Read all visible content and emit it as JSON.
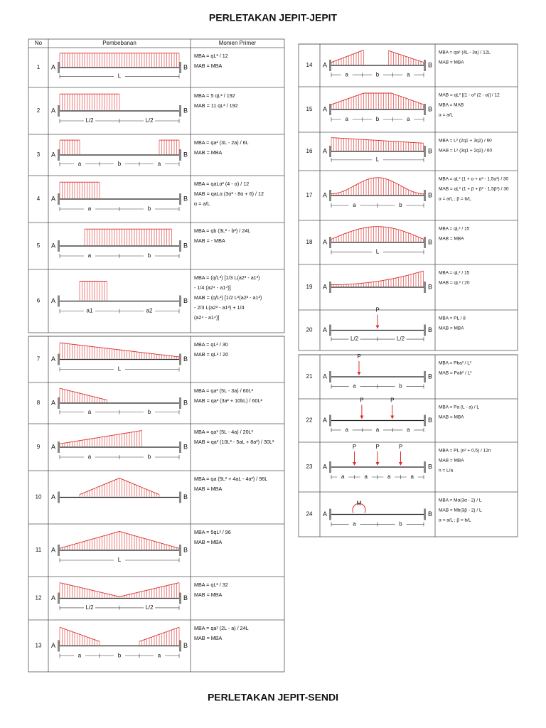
{
  "title": "PERLETAKAN JEPIT-JEPIT",
  "footer_title": "PERLETAKAN JEPIT-SENDI",
  "headers": [
    "No",
    "Pembebanan",
    "Momen Primer"
  ],
  "support_labels": {
    "left": "A",
    "right": "B"
  },
  "tables": [
    {
      "rows": [
        {
          "no": "1",
          "dims": [
            "L"
          ],
          "formula": [
            "MBA = qL² / 12",
            "MAB = MBA"
          ]
        },
        {
          "no": "2",
          "dims": [
            "L/2",
            "L/2"
          ],
          "formula": [
            "MBA = 5 qL² / 192",
            "MAB = 11 qL² / 192"
          ]
        },
        {
          "no": "3",
          "dims": [
            "a",
            "b",
            "a"
          ],
          "formula": [
            "MBA = qa² (3L - 2a) / 6L",
            "MAB = MBA"
          ]
        },
        {
          "no": "4",
          "dims": [
            "a",
            "b"
          ],
          "formula": [
            "MBA = qaLα² (4 - α) / 12",
            "MAB = qaLα (3α² - 8α + 6) / 12",
            "α = a/L"
          ]
        },
        {
          "no": "5",
          "dims": [
            "a",
            "b"
          ],
          "formula": [
            "MBA = qb (3L² - b²) / 24L",
            "MAB = - MBA"
          ]
        },
        {
          "no": "6",
          "dims": [
            "a1",
            "a2"
          ],
          "formula": [
            "MBA = (q/L²) [1/3 L(a2³ - a1³)",
            "- 1/4 (a2⁴ - a1⁴)]",
            "MAB = (q/L²) [1/2 L²(a2² - a1²)",
            "- 2/3 L(a2³ - a1³) + 1/4",
            "(a2⁴ - a1⁴)]"
          ]
        }
      ]
    },
    {
      "rows": [
        {
          "no": "7",
          "dims": [
            "L"
          ],
          "formula": [
            "MBA = qL² / 30",
            "MAB = qL² / 20"
          ]
        },
        {
          "no": "8",
          "dims": [
            "a",
            "b"
          ],
          "formula": [
            "MBA = qa³ (5L - 3a) / 60L²",
            "MAB = qa² (3a² + 10bL) / 60L²"
          ]
        },
        {
          "no": "9",
          "dims": [
            "a",
            "b"
          ],
          "formula": [
            "MBA = qa³ (5L - 4a) / 20L²",
            "MAB = qa² (10L² - 5aL + 8a²) / 30L²"
          ]
        },
        {
          "no": "10",
          "dims": [],
          "formula": [
            "MBA = qa (5L² + 4aL - 4a²) / 96L",
            "MAB = MBA"
          ]
        },
        {
          "no": "11",
          "dims": [
            "L"
          ],
          "formula": [
            "MBA = 5qL² / 96",
            "MAB = MBA"
          ]
        },
        {
          "no": "12",
          "dims": [
            "L/2",
            "L/2"
          ],
          "formula": [
            "MBA = qL² / 32",
            "MAB = MBA"
          ]
        },
        {
          "no": "13",
          "dims": [
            "a",
            "b",
            "a"
          ],
          "formula": [
            "MBA = qa² (2L - a) / 24L",
            "MAB = MBA"
          ]
        }
      ]
    },
    {
      "rows": [
        {
          "no": "14",
          "dims": [
            "a",
            "b",
            "a"
          ],
          "formula": [
            "MBA = qa² (4L - 3a) / 12L",
            "MAB = MBA"
          ]
        },
        {
          "no": "15",
          "dims": [
            "a",
            "b",
            "a"
          ],
          "formula": [
            "MAB = qL² [(1 - α² (2 - α)] / 12",
            "MBA = MAB",
            "α = a/L"
          ]
        },
        {
          "no": "16",
          "dims": [
            "L"
          ],
          "formula": [
            "MBA = L² (2q1 + 3q2) / 60",
            "MAB = L² (3q1 + 2q2) / 60"
          ]
        },
        {
          "no": "17",
          "dims": [
            "a",
            "b"
          ],
          "formula": [
            "MBA = qL² (1 + α + α² - 1,5α³) / 30",
            "MAB = qL² (1 + β + β² - 1,5β³) / 30",
            "α = a/L ; β = b/L"
          ]
        },
        {
          "no": "18",
          "dims": [
            "L"
          ],
          "formula": [
            "MBA = qL² / 15",
            "MAB = MBA"
          ]
        },
        {
          "no": "19",
          "dims": [],
          "formula": [
            "MBA = qL² / 15",
            "MAB = qL² / 20"
          ]
        },
        {
          "no": "20",
          "dims": [
            "L/2",
            "L/2"
          ],
          "loads": [
            "P"
          ],
          "formula": [
            "MBA = PL / 8",
            "MAB = MBA"
          ]
        }
      ]
    },
    {
      "rows": [
        {
          "no": "21",
          "dims": [
            "a",
            "b"
          ],
          "loads": [
            "P"
          ],
          "formula": [
            "MBA = Pba² / L²",
            "MAB = Pab² / L²"
          ]
        },
        {
          "no": "22",
          "dims": [
            "a",
            "a",
            "a"
          ],
          "loads": [
            "P",
            "P"
          ],
          "formula": [
            "MBA = Pa (L - a) / L",
            "MAB = MBA"
          ]
        },
        {
          "no": "23",
          "dims": [
            "a",
            "a",
            "a",
            "a"
          ],
          "loads": [
            "P",
            "P",
            "P"
          ],
          "formula": [
            "MBA = PL (n² + 0,5) / 12n",
            "MAB = MBA",
            "n = L/a"
          ]
        },
        {
          "no": "24",
          "dims": [
            "a",
            "b"
          ],
          "loads": [
            "M"
          ],
          "formula": [
            "MBA = Mα(3α - 2) / L",
            "MAB = Mb(3β - 2) / L",
            "α = a/L ; β = b/L"
          ]
        }
      ]
    }
  ]
}
